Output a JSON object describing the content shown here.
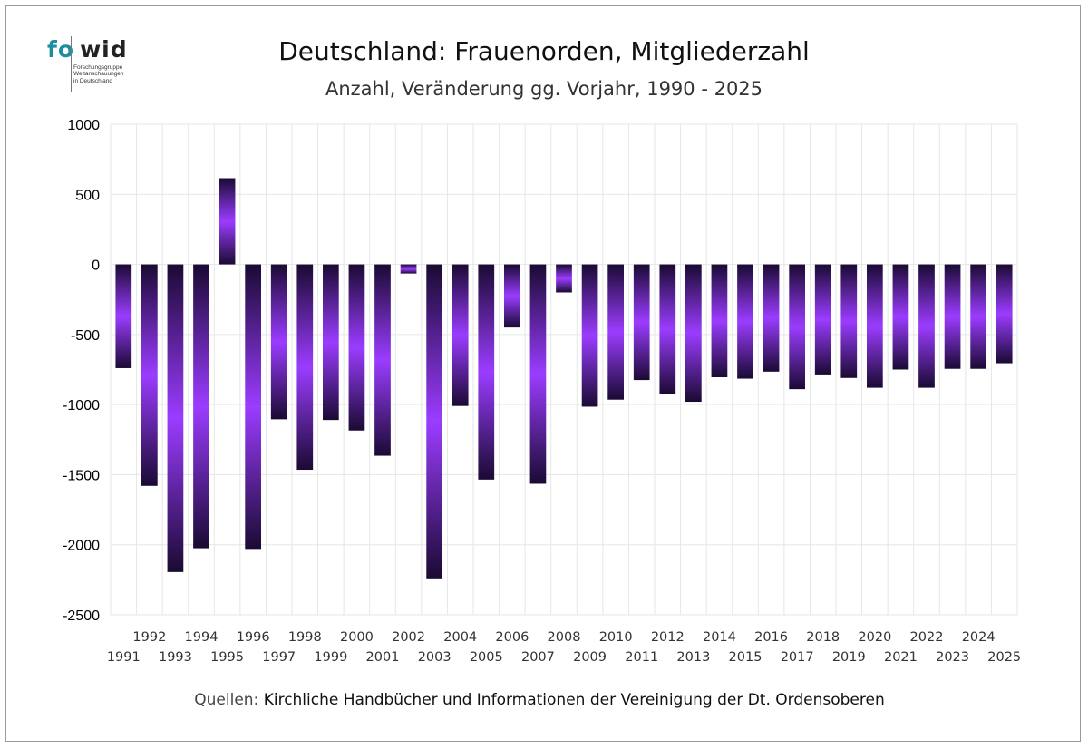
{
  "logo": {
    "word_fo": "fo",
    "word_wid": "wid",
    "sub_lines": [
      "Forschungsgruppe",
      "Weltanschauungen",
      "in Deutschland"
    ]
  },
  "title": "Deutschland: Frauenorden, Mitgliederzahl",
  "subtitle": "Anzahl, Veränderung gg. Vorjahr, 1990 - 2025",
  "source": {
    "label": "Quellen:",
    "text": "Kirchliche Handbücher und Informationen der Vereinigung der Dt. Ordensoberen"
  },
  "colors": {
    "bar_edge": "#1a0a33",
    "bar_mid": "#9b3cff",
    "grid": "#e6e6e6"
  },
  "chart_data": {
    "type": "bar",
    "title": "Deutschland: Frauenorden, Mitgliederzahl",
    "subtitle": "Anzahl, Veränderung gg. Vorjahr, 1990 - 2025",
    "xlabel": "",
    "ylabel": "",
    "ylim": [
      -2500,
      1000
    ],
    "yticks": [
      1000,
      500,
      0,
      -500,
      -1000,
      -1500,
      -2000,
      -2500
    ],
    "grid": true,
    "categories": [
      "1991",
      "1992",
      "1993",
      "1994",
      "1995",
      "1996",
      "1997",
      "1998",
      "1999",
      "2000",
      "2001",
      "2002",
      "2003",
      "2004",
      "2005",
      "2006",
      "2007",
      "2008",
      "2009",
      "2010",
      "2011",
      "2012",
      "2013",
      "2014",
      "2015",
      "2016",
      "2017",
      "2018",
      "2019",
      "2020",
      "2021",
      "2022",
      "2023",
      "2024",
      "2025"
    ],
    "values": [
      -740,
      -1580,
      -2195,
      -2025,
      615,
      -2030,
      -1105,
      -1465,
      -1110,
      -1185,
      -1365,
      -65,
      -2240,
      -1010,
      -1535,
      -450,
      -1565,
      -200,
      -1015,
      -965,
      -825,
      -925,
      -980,
      -805,
      -815,
      -765,
      -890,
      -785,
      -810,
      -880,
      -750,
      -880,
      -745,
      -745,
      -705
    ]
  }
}
